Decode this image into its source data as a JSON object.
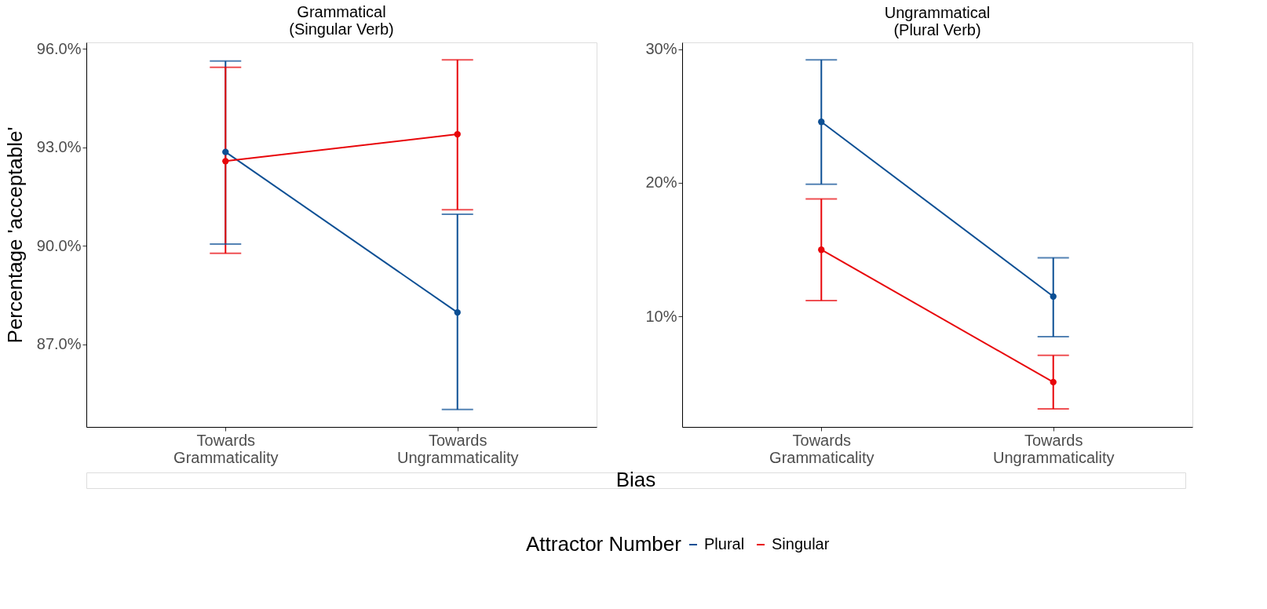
{
  "chart_data": [
    {
      "type": "line",
      "title": "Grammatical\n(Singular Verb)",
      "ylabel": "Percentage 'acceptable'",
      "xlabel": "Bias",
      "legend_title": "Attractor Number",
      "legend": "bottom",
      "grid": false,
      "marker": "circle",
      "line_style": "solid",
      "categories": [
        "Towards\nGrammaticality",
        "Towards\nUngrammaticality"
      ],
      "ylim": [
        84.48,
        96.2
      ],
      "yticks": [
        {
          "value": 87,
          "label": "87.0%"
        },
        {
          "value": 90,
          "label": "90.0%"
        },
        {
          "value": 93,
          "label": "93.0%"
        },
        {
          "value": 96,
          "label": "96.0%"
        }
      ],
      "series": [
        {
          "name": "Plural",
          "color": "#0c4f94",
          "values": [
            92.86,
            87.97
          ],
          "errors": [
            [
              90.05,
              95.63
            ],
            [
              85.01,
              90.96
            ]
          ]
        },
        {
          "name": "Singular",
          "color": "#e8060a",
          "values": [
            92.58,
            93.4
          ],
          "errors": [
            [
              89.77,
              95.44
            ],
            [
              91.1,
              95.67
            ]
          ]
        }
      ]
    },
    {
      "type": "line",
      "title": "Ungrammatical\n(Plural Verb)",
      "legend": "bottom",
      "grid": false,
      "marker": "circle",
      "line_style": "solid",
      "categories": [
        "Towards\nGrammaticality",
        "Towards\nUngrammaticality"
      ],
      "ylim": [
        1.75,
        30.5
      ],
      "yticks": [
        {
          "value": 10,
          "label": "10%"
        },
        {
          "value": 20,
          "label": "20%"
        },
        {
          "value": 30,
          "label": "30%"
        }
      ],
      "series": [
        {
          "name": "Plural",
          "color": "#0c4f94",
          "values": [
            24.56,
            11.5
          ],
          "errors": [
            [
              19.9,
              29.2
            ],
            [
              8.5,
              14.4
            ]
          ]
        },
        {
          "name": "Singular",
          "color": "#e8060a",
          "values": [
            15.0,
            5.1
          ],
          "errors": [
            [
              11.2,
              18.8
            ],
            [
              3.1,
              7.1
            ]
          ]
        }
      ]
    }
  ]
}
